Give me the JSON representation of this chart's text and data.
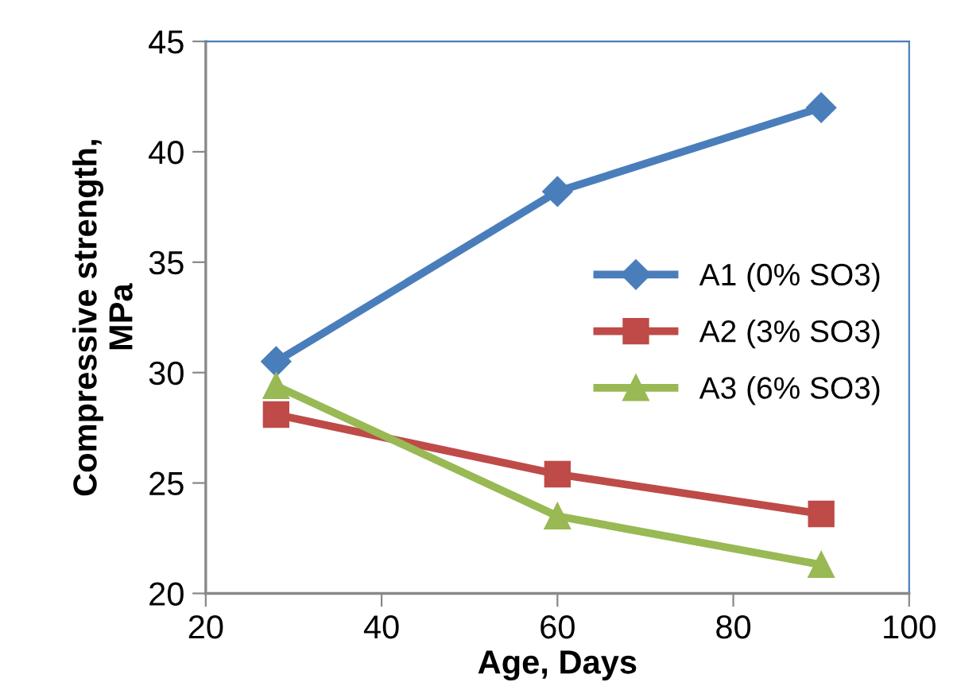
{
  "chart_data": {
    "type": "line",
    "xlabel": "Age, Days",
    "ylabel": "Compressive strength,\nMPa",
    "x": [
      28,
      60,
      90
    ],
    "series": [
      {
        "name": "A1 (0% SO3)",
        "color": "#4a7ebb",
        "marker": "diamond",
        "values": [
          30.5,
          38.2,
          42.0
        ]
      },
      {
        "name": "A2 (3% SO3)",
        "color": "#be4b48",
        "marker": "square",
        "values": [
          28.1,
          25.4,
          23.6
        ]
      },
      {
        "name": "A3 (6% SO3)",
        "color": "#98b954",
        "marker": "triangle",
        "values": [
          29.4,
          23.5,
          21.3
        ]
      }
    ],
    "xlim": [
      20,
      100
    ],
    "xticks": [
      20,
      40,
      60,
      80,
      100
    ],
    "ylim": [
      20,
      45
    ],
    "yticks": [
      20,
      25,
      30,
      35,
      40,
      45
    ],
    "grid": false,
    "legend": "right",
    "line_style": "solid"
  }
}
